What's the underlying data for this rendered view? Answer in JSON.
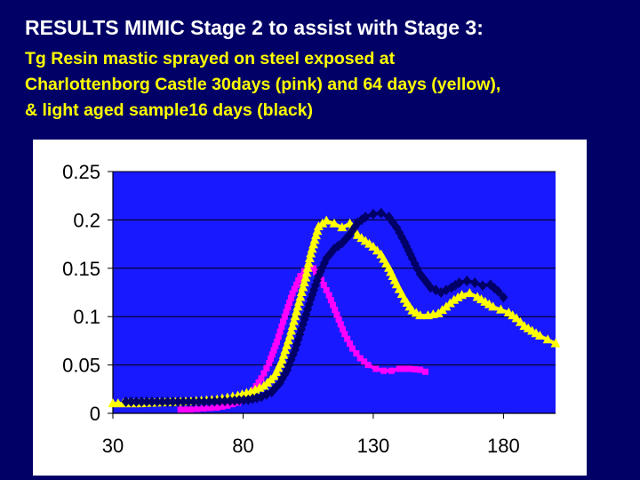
{
  "header": {
    "title": "RESULTS MIMIC Stage 2 to assist with Stage 3:",
    "subtitle_lines": [
      "Tg Resin mastic sprayed on steel exposed at",
      "Charlottenborg Castle 30days (pink) and 64 days (yellow),",
      "& light aged sample16 days (black)"
    ]
  },
  "colors": {
    "slide_background": "#000066",
    "plot_background": "#1919ff",
    "chart_box": "#ffffff",
    "title_color": "#ffffff",
    "subtitle_color": "#ffff00"
  },
  "chart_data": {
    "type": "line",
    "title": "",
    "xlabel": "",
    "ylabel": "",
    "xlim": [
      30,
      200
    ],
    "ylim": [
      0,
      0.25
    ],
    "x_ticks": [
      30,
      80,
      130,
      180
    ],
    "x_tick_labels": [
      "30",
      "80",
      "130",
      "180"
    ],
    "y_ticks": [
      0,
      0.05,
      0.1,
      0.15,
      0.2,
      0.25
    ],
    "y_tick_labels": [
      "0",
      "0.05",
      "0.1",
      "0.15",
      "0.2",
      "0.25"
    ],
    "grid": "horizontal",
    "legend": "none",
    "series": [
      {
        "name": "30 days (pink)",
        "color": "#ff00ff",
        "marker": "square",
        "x": [
          56,
          60,
          65,
          70,
          74,
          78,
          81,
          84,
          87,
          90,
          93,
          96,
          99,
          102,
          105,
          107,
          110,
          113,
          116,
          119,
          122,
          125,
          128,
          131,
          134,
          137,
          140,
          144,
          148,
          150
        ],
        "y": [
          0.004,
          0.004,
          0.005,
          0.006,
          0.008,
          0.011,
          0.016,
          0.024,
          0.036,
          0.052,
          0.074,
          0.1,
          0.124,
          0.142,
          0.152,
          0.15,
          0.138,
          0.122,
          0.102,
          0.082,
          0.067,
          0.057,
          0.05,
          0.046,
          0.044,
          0.044,
          0.046,
          0.046,
          0.045,
          0.043
        ]
      },
      {
        "name": "64 days (yellow)",
        "color": "#ffff00",
        "marker": "triangle",
        "x": [
          30,
          40,
          50,
          60,
          70,
          78,
          83,
          88,
          92,
          95,
          98,
          101,
          104,
          106,
          109,
          112,
          115,
          118,
          121,
          124,
          127,
          130,
          133,
          136,
          139,
          142,
          145,
          148,
          151,
          155,
          158,
          161,
          164,
          167,
          170,
          173,
          176,
          179,
          182,
          185,
          188,
          191,
          194,
          197,
          200
        ],
        "y": [
          0.01,
          0.01,
          0.011,
          0.012,
          0.014,
          0.018,
          0.022,
          0.028,
          0.038,
          0.055,
          0.08,
          0.11,
          0.14,
          0.165,
          0.193,
          0.199,
          0.196,
          0.192,
          0.196,
          0.184,
          0.178,
          0.172,
          0.164,
          0.15,
          0.133,
          0.118,
          0.106,
          0.101,
          0.101,
          0.103,
          0.11,
          0.117,
          0.122,
          0.124,
          0.12,
          0.115,
          0.11,
          0.107,
          0.104,
          0.098,
          0.09,
          0.085,
          0.08,
          0.076,
          0.072
        ]
      },
      {
        "name": "light aged 16 days (black)",
        "color": "#000066",
        "marker": "diamond",
        "x": [
          35,
          45,
          55,
          65,
          75,
          82,
          87,
          91,
          94,
          97,
          100,
          103,
          106,
          109,
          112,
          115,
          118,
          121,
          124,
          127,
          130,
          133,
          136,
          139,
          142,
          145,
          148,
          152,
          156,
          160,
          163,
          166,
          169,
          172,
          175,
          178,
          180
        ],
        "y": [
          0.012,
          0.012,
          0.012,
          0.012,
          0.013,
          0.014,
          0.017,
          0.022,
          0.031,
          0.045,
          0.066,
          0.092,
          0.118,
          0.142,
          0.16,
          0.17,
          0.176,
          0.185,
          0.197,
          0.203,
          0.206,
          0.207,
          0.203,
          0.192,
          0.177,
          0.16,
          0.144,
          0.13,
          0.125,
          0.13,
          0.135,
          0.137,
          0.135,
          0.132,
          0.133,
          0.126,
          0.12
        ]
      }
    ]
  }
}
